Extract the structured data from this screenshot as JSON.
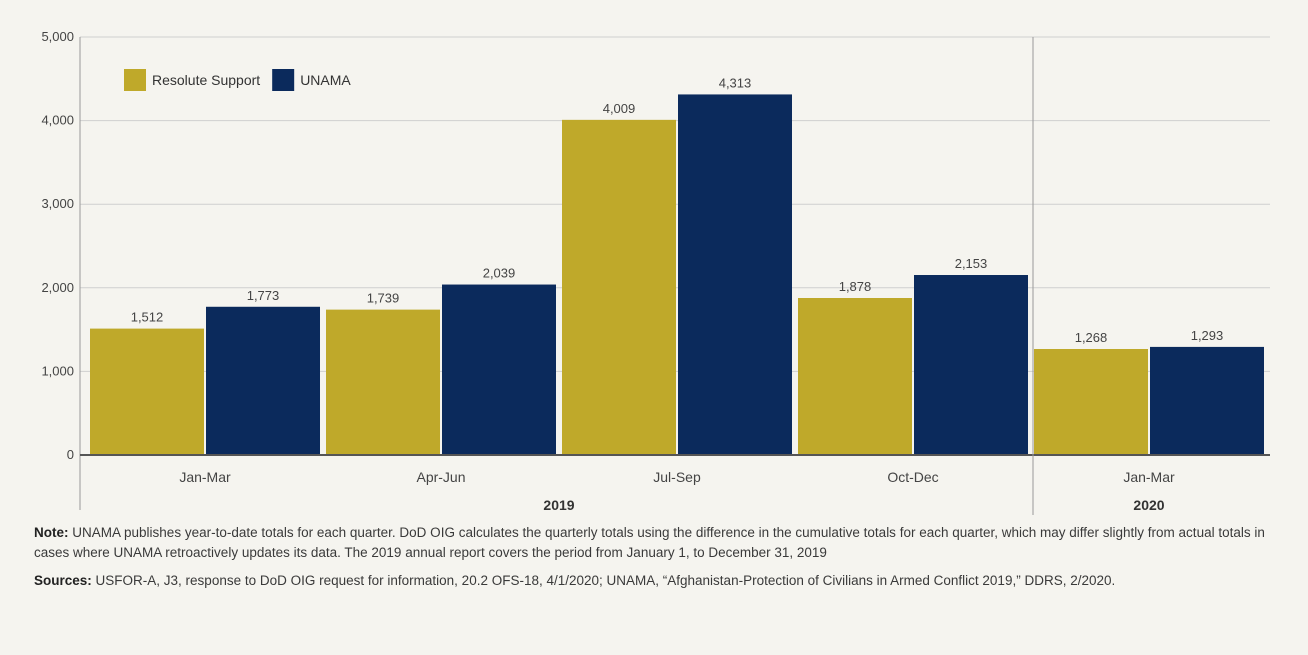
{
  "chart_data": {
    "type": "bar",
    "categories": [
      "Jan-Mar",
      "Apr-Jun",
      "Jul-Sep",
      "Oct-Dec",
      "Jan-Mar"
    ],
    "year_groups": [
      {
        "label": "2019",
        "start": 0,
        "end": 3
      },
      {
        "label": "2020",
        "start": 4,
        "end": 4
      }
    ],
    "series": [
      {
        "name": "Resolute Support",
        "color": "#bfa92a",
        "values": [
          1512,
          1739,
          4009,
          1878,
          1268
        ],
        "labels": [
          "1,512",
          "1,739",
          "4,009",
          "1,878",
          "1,268"
        ]
      },
      {
        "name": "UNAMA",
        "color": "#0b2a5c",
        "values": [
          1773,
          2039,
          4313,
          2153,
          1293
        ],
        "labels": [
          "1,773",
          "2,039",
          "4,313",
          "2,153",
          "1,293"
        ]
      }
    ],
    "yticks": [
      0,
      1000,
      2000,
      3000,
      4000,
      5000
    ],
    "ytick_labels": [
      "0",
      "1,000",
      "2,000",
      "3,000",
      "4,000",
      "5,000"
    ],
    "ylim": [
      0,
      5000
    ],
    "grid": true,
    "legend_position": "top-left"
  },
  "note": {
    "label": "Note:",
    "text": "UNAMA publishes year-to-date totals for each quarter. DoD OIG calculates the quarterly totals using the difference in the cumulative totals for each quarter, which may differ slightly from actual totals in cases where UNAMA retroactively updates its data. The 2019 annual report covers the period from January 1, to December 31, 2019"
  },
  "sources": {
    "label": "Sources:",
    "text": "USFOR-A, J3, response to DoD OIG request for information, 20.2 OFS-18, 4/1/2020; UNAMA, “Afghanistan-Protection of Civilians in Armed Conflict 2019,” DDRS, 2/2020."
  }
}
